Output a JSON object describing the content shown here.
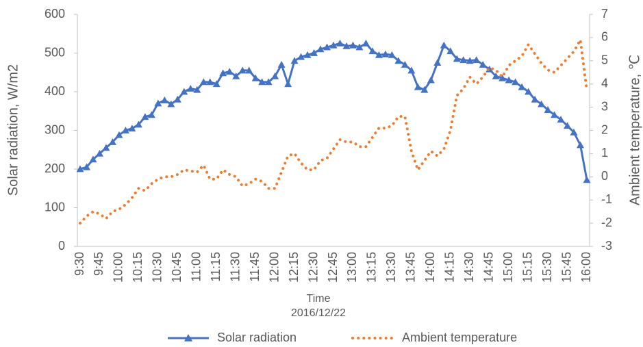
{
  "chart_data": {
    "type": "line",
    "xlabel": "Time",
    "xlabel_date": "2016/12/22",
    "ylabel": "Solar radiation, W/m2",
    "y2label": "Ambient temperature, ℃",
    "categories": [
      "9:30",
      null,
      null,
      "9:45",
      null,
      null,
      "10:00",
      null,
      null,
      "10:15",
      null,
      null,
      "10:30",
      null,
      null,
      "10:45",
      null,
      null,
      "11:00",
      null,
      null,
      "11:15",
      null,
      null,
      "11:30",
      null,
      null,
      "11:45",
      null,
      null,
      "12:00",
      null,
      null,
      "12:15",
      null,
      null,
      "12:30",
      null,
      null,
      "12:45",
      null,
      null,
      "13:00",
      null,
      null,
      "13:15",
      null,
      null,
      "13:30",
      null,
      null,
      "13:45",
      null,
      null,
      "14:00",
      null,
      null,
      "14:15",
      null,
      null,
      "14:30",
      null,
      null,
      "14:45",
      null,
      null,
      "15:00",
      null,
      null,
      "15:15",
      null,
      null,
      "15:30",
      null,
      null,
      "15:45",
      null,
      null,
      "16:00"
    ],
    "series": [
      {
        "name": "Solar radiation",
        "color": "#4472c4",
        "marker": "triangle",
        "values": [
          200,
          205,
          225,
          240,
          255,
          270,
          288,
          300,
          305,
          315,
          335,
          340,
          370,
          378,
          368,
          380,
          400,
          408,
          405,
          425,
          425,
          420,
          448,
          452,
          440,
          455,
          455,
          435,
          425,
          425,
          440,
          470,
          420,
          480,
          490,
          495,
          500,
          510,
          515,
          520,
          525,
          518,
          520,
          515,
          525,
          505,
          495,
          497,
          495,
          480,
          470,
          455,
          412,
          405,
          430,
          475,
          520,
          505,
          485,
          482,
          480,
          482,
          470,
          458,
          440,
          435,
          430,
          425,
          412,
          400,
          380,
          368,
          353,
          340,
          328,
          312,
          295,
          262,
          172
        ]
      },
      {
        "name": "Ambient temperature",
        "color": "#ed7d31",
        "axis": "y2",
        "dashed": true,
        "values": [
          -2.0,
          -1.7,
          -1.5,
          -1.6,
          -1.8,
          -1.5,
          -1.4,
          -1.2,
          -0.9,
          -0.5,
          -0.6,
          -0.3,
          -0.1,
          0.0,
          0.0,
          0.1,
          0.3,
          0.25,
          0.2,
          0.5,
          -0.1,
          -0.1,
          0.3,
          0.1,
          0.0,
          -0.4,
          -0.3,
          -0.1,
          -0.2,
          -0.5,
          -0.5,
          0.2,
          0.9,
          1.0,
          0.6,
          0.3,
          0.3,
          0.7,
          0.8,
          1.2,
          1.6,
          1.5,
          1.5,
          1.3,
          1.3,
          1.7,
          2.1,
          2.1,
          2.2,
          2.6,
          2.6,
          1.1,
          0.3,
          0.7,
          1.1,
          0.9,
          1.2,
          2.0,
          3.5,
          3.8,
          4.3,
          4.0,
          4.3,
          4.7,
          4.6,
          4.3,
          4.8,
          5.0,
          5.2,
          5.7,
          5.3,
          4.9,
          4.6,
          4.5,
          4.8,
          5.1,
          5.4,
          5.9,
          3.7
        ]
      }
    ],
    "ylim": [
      0,
      600
    ],
    "yticks": [
      0,
      100,
      200,
      300,
      400,
      500,
      600
    ],
    "y2lim": [
      -3,
      7
    ],
    "y2ticks": [
      -3,
      -2,
      -1,
      0,
      1,
      2,
      3,
      4,
      5,
      6,
      7
    ],
    "grid": false,
    "legend": "bottom"
  }
}
